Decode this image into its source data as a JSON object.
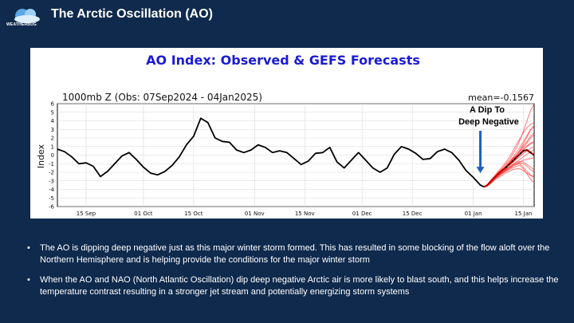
{
  "slide": {
    "title": "The Arctic Oscillation (AO)",
    "logo_text": "WEATHERBUG",
    "bullets": [
      "The AO is dipping deep negative just as this major winter storm formed.  This has resulted in some blocking of the flow aloft over the Northern Hemisphere and is helping provide the conditions for the major winter storm",
      "When the AO and NAO (North Atlantic Oscillation) dip deep negative Arctic air is more likely to blast south, and this helps increase the temperature contrast resulting in a stronger jet stream and potentially energizing storm systems"
    ]
  },
  "colors": {
    "background": "#0f2a4d",
    "chart_title": "#1a1ad6",
    "observed": "#000000",
    "members": "#ff4040",
    "mean": "#c00000",
    "arrow": "#1f5fbf"
  },
  "chart_data": {
    "type": "line",
    "title": "AO Index: Observed & GEFS Forecasts",
    "subtitle_left": "1000mb Z (Obs: 07Sep2024 - 04Jan2025)",
    "subtitle_right": "mean=-0.1567",
    "ylabel": "Index",
    "ylim": [
      -6,
      6
    ],
    "yticks": [
      6,
      5,
      4,
      3,
      2,
      1,
      0,
      -1,
      -2,
      -3,
      -4,
      -5,
      -6
    ],
    "xlim_days": [
      0,
      133
    ],
    "xtick_labels": [
      "15 Sep",
      "01 Oct",
      "15 Oct",
      "01 Nov",
      "15 Nov",
      "01 Dec",
      "15 Dec",
      "01 Jan",
      "15 Jan"
    ],
    "xtick_days": [
      8,
      24,
      38,
      55,
      69,
      85,
      99,
      116,
      130
    ],
    "annotation": {
      "text_line1": "A Dip To",
      "text_line2": "Deep Negative",
      "day": 118,
      "value": -2.2
    },
    "observed": {
      "days": [
        0,
        2,
        4,
        6,
        8,
        10,
        12,
        14,
        16,
        18,
        20,
        22,
        24,
        26,
        28,
        30,
        32,
        34,
        36,
        38,
        40,
        42,
        44,
        46,
        48,
        50,
        52,
        54,
        56,
        58,
        60,
        62,
        64,
        66,
        68,
        70,
        72,
        74,
        76,
        78,
        80,
        82,
        84,
        86,
        88,
        90,
        92,
        94,
        96,
        98,
        100,
        102,
        104,
        106,
        108,
        110,
        112,
        114,
        116,
        118,
        119
      ],
      "values": [
        0.7,
        0.4,
        -0.2,
        -1.0,
        -0.9,
        -1.3,
        -2.5,
        -1.9,
        -1.0,
        -0.1,
        0.3,
        -0.5,
        -1.4,
        -2.1,
        -2.3,
        -1.9,
        -1.2,
        -0.2,
        1.2,
        2.2,
        4.3,
        3.8,
        2.0,
        1.6,
        1.5,
        0.6,
        0.3,
        0.6,
        1.2,
        0.9,
        0.3,
        0.5,
        0.3,
        -0.4,
        -1.1,
        -0.7,
        0.2,
        0.3,
        0.9,
        -0.8,
        -1.5,
        -0.6,
        0.3,
        -0.6,
        -1.5,
        -2.0,
        -1.5,
        0.1,
        1.0,
        0.7,
        0.2,
        -0.5,
        -0.4,
        0.4,
        0.7,
        0.3,
        -0.6,
        -1.8,
        -2.6,
        -3.5,
        -3.7
      ]
    },
    "forecast_mean": {
      "days": [
        119,
        120,
        121,
        122,
        123,
        124,
        125,
        126,
        127,
        128,
        129,
        130,
        131,
        132,
        133
      ],
      "values": [
        -3.7,
        -3.5,
        -3.0,
        -2.6,
        -2.2,
        -1.8,
        -1.5,
        -1.1,
        -0.7,
        -0.3,
        0.1,
        0.5,
        0.6,
        0.3,
        0.0
      ]
    },
    "forecast_members": {
      "days": [
        119,
        120,
        121,
        122,
        123,
        124,
        125,
        126,
        127,
        128,
        129,
        130,
        131,
        132,
        133
      ],
      "series": [
        [
          -3.7,
          -3.5,
          -3.0,
          -2.5,
          -2.0,
          -1.6,
          -1.1,
          -0.6,
          0.1,
          0.8,
          1.7,
          2.8,
          4.0,
          5.2,
          6.0
        ],
        [
          -3.7,
          -3.4,
          -2.9,
          -2.4,
          -1.9,
          -1.4,
          -0.9,
          -0.3,
          0.4,
          1.2,
          1.9,
          2.6,
          3.2,
          3.6,
          3.8
        ],
        [
          -3.7,
          -3.6,
          -3.2,
          -2.8,
          -2.5,
          -2.2,
          -1.9,
          -1.6,
          -1.3,
          -1.1,
          -0.9,
          -1.0,
          -1.3,
          -1.7,
          -2.0
        ],
        [
          -3.7,
          -3.5,
          -3.1,
          -2.7,
          -2.4,
          -2.2,
          -1.9,
          -1.7,
          -1.5,
          -1.3,
          -1.2,
          -1.6,
          -2.2,
          -2.8,
          -3.2
        ],
        [
          -3.7,
          -3.4,
          -3.0,
          -2.6,
          -2.1,
          -1.8,
          -1.4,
          -1.0,
          -0.6,
          -0.3,
          0.2,
          0.7,
          1.1,
          1.4,
          1.6
        ],
        [
          -3.7,
          -3.5,
          -3.1,
          -2.7,
          -2.3,
          -2.0,
          -1.7,
          -1.4,
          -1.1,
          -0.8,
          -0.5,
          -0.2,
          0.1,
          0.4,
          0.6
        ],
        [
          -3.7,
          -3.6,
          -3.3,
          -2.9,
          -2.6,
          -2.4,
          -2.1,
          -1.9,
          -1.7,
          -1.6,
          -1.6,
          -1.8,
          -2.1,
          -2.4,
          -2.6
        ],
        [
          -3.7,
          -3.4,
          -2.9,
          -2.5,
          -2.1,
          -1.7,
          -1.3,
          -0.9,
          -0.4,
          0.0,
          0.5,
          1.1,
          1.6,
          2.2,
          2.6
        ],
        [
          -3.7,
          -3.5,
          -3.0,
          -2.6,
          -2.3,
          -1.9,
          -1.6,
          -1.2,
          -0.9,
          -0.5,
          -0.2,
          0.2,
          0.5,
          0.8,
          1.0
        ],
        [
          -3.7,
          -3.6,
          -3.2,
          -2.8,
          -2.4,
          -2.1,
          -1.8,
          -1.5,
          -1.2,
          -1.0,
          -0.8,
          -0.6,
          -0.5,
          -0.4,
          -0.3
        ],
        [
          -3.7,
          -3.5,
          -3.1,
          -2.6,
          -2.2,
          -1.8,
          -1.4,
          -1.0,
          -0.5,
          0.0,
          0.6,
          1.3,
          2.1,
          2.9,
          3.5
        ],
        [
          -3.7,
          -3.4,
          -3.0,
          -2.7,
          -2.4,
          -2.1,
          -1.8,
          -1.5,
          -1.3,
          -1.1,
          -1.0,
          -1.4,
          -1.9,
          -2.3,
          -2.5
        ],
        [
          -3.7,
          -3.5,
          -3.2,
          -2.8,
          -2.4,
          -2.0,
          -1.6,
          -1.2,
          -0.8,
          -0.4,
          0.1,
          0.6,
          1.0,
          1.3,
          1.5
        ],
        [
          -3.7,
          -3.6,
          -3.1,
          -2.7,
          -2.3,
          -1.9,
          -1.5,
          -1.0,
          -0.6,
          -0.1,
          0.4,
          0.9,
          1.4,
          2.0,
          2.4
        ],
        [
          -3.7,
          -3.5,
          -3.1,
          -2.7,
          -2.4,
          -2.0,
          -1.7,
          -1.4,
          -1.1,
          -0.9,
          -0.7,
          -0.8,
          -1.1,
          -1.4,
          -1.7
        ],
        [
          -3.7,
          -3.4,
          -3.0,
          -2.6,
          -2.2,
          -1.8,
          -1.3,
          -0.8,
          -0.3,
          0.3,
          0.9,
          1.6,
          2.3,
          3.0,
          3.3
        ]
      ]
    }
  }
}
